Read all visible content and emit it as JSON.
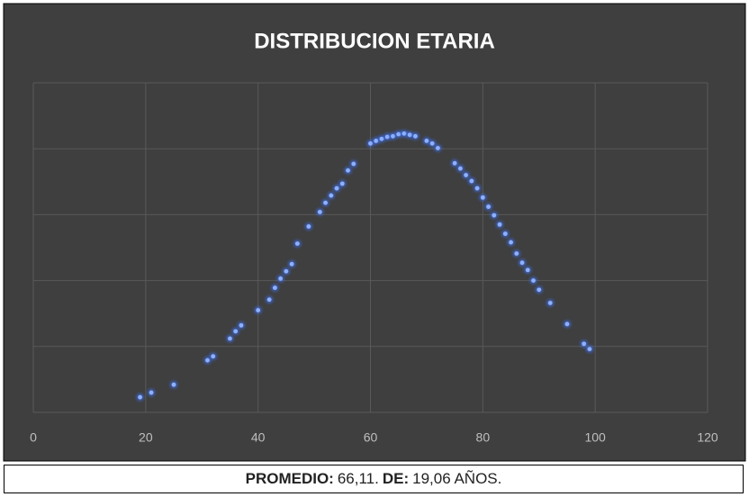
{
  "chart_data": {
    "type": "scatter",
    "title": "DISTRIBUCION ETARIA",
    "x": [
      19,
      21,
      25,
      31,
      32,
      35,
      36,
      37,
      40,
      42,
      43,
      44,
      45,
      46,
      47,
      49,
      51,
      52,
      53,
      54,
      55,
      56,
      57,
      60,
      61,
      62,
      63,
      64,
      65,
      66,
      67,
      68,
      70,
      71,
      72,
      75,
      76,
      77,
      78,
      79,
      80,
      81,
      82,
      83,
      84,
      85,
      86,
      87,
      88,
      89,
      90,
      92,
      95,
      98,
      99
    ],
    "series": [
      {
        "color": "#3d74ff",
        "values": [
          0.23,
          0.3,
          0.42,
          0.79,
          0.85,
          1.12,
          1.23,
          1.32,
          1.55,
          1.71,
          1.89,
          2.03,
          2.14,
          2.25,
          2.56,
          2.82,
          3.04,
          3.18,
          3.29,
          3.4,
          3.47,
          3.67,
          3.77,
          4.08,
          4.12,
          4.15,
          4.18,
          4.19,
          4.22,
          4.23,
          4.21,
          4.19,
          4.12,
          4.08,
          4.01,
          3.78,
          3.7,
          3.6,
          3.51,
          3.4,
          3.26,
          3.12,
          2.99,
          2.85,
          2.71,
          2.58,
          2.41,
          2.27,
          2.16,
          2.0,
          1.86,
          1.66,
          1.34,
          1.04,
          0.96
        ]
      }
    ],
    "xlim": [
      0,
      120
    ],
    "xticks": [
      0,
      20,
      40,
      60,
      80,
      100,
      120
    ],
    "ylim": [
      0,
      5
    ],
    "yticks": [
      0,
      1,
      2,
      3,
      4,
      5
    ],
    "grid": true,
    "footer": [
      {
        "text": "PROMEDIO:",
        "bold": true
      },
      {
        "text": "66,11.",
        "bold": false
      },
      {
        "text": "DE:",
        "bold": true
      },
      {
        "text": "19,06 AÑOS.",
        "bold": false
      }
    ]
  }
}
